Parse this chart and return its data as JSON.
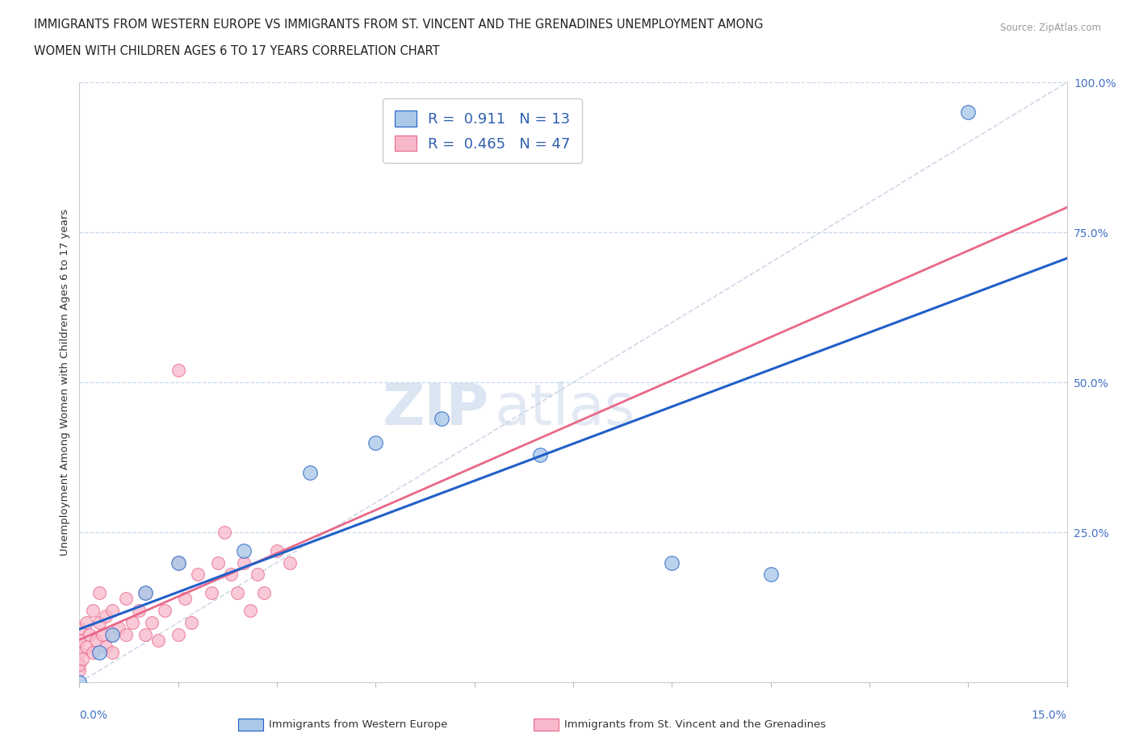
{
  "title_line1": "IMMIGRANTS FROM WESTERN EUROPE VS IMMIGRANTS FROM ST. VINCENT AND THE GRENADINES UNEMPLOYMENT AMONG",
  "title_line2": "WOMEN WITH CHILDREN AGES 6 TO 17 YEARS CORRELATION CHART",
  "source": "Source: ZipAtlas.com",
  "ylabel_label": "Unemployment Among Women with Children Ages 6 to 17 years",
  "legend1_label": "Immigrants from Western Europe",
  "legend2_label": "Immigrants from St. Vincent and the Grenadines",
  "R_blue": 0.911,
  "N_blue": 13,
  "R_pink": 0.465,
  "N_pink": 47,
  "blue_color": "#aac8e8",
  "blue_line_color": "#2060c8",
  "pink_color": "#f8b8cc",
  "pink_line_color": "#e86888",
  "diagonal_color": "#d0d8e8",
  "watermark_zip": "ZIP",
  "watermark_atlas": "atlas",
  "blue_scatter_x": [
    0.0,
    0.3,
    0.5,
    1.0,
    1.5,
    2.5,
    3.5,
    4.5,
    5.5,
    7.0,
    9.0,
    10.5,
    13.5
  ],
  "blue_scatter_y": [
    0.0,
    5.0,
    8.0,
    15.0,
    20.0,
    22.0,
    35.0,
    40.0,
    44.0,
    38.0,
    20.0,
    18.0,
    95.0
  ],
  "pink_scatter_x": [
    0.0,
    0.0,
    0.0,
    0.0,
    0.0,
    0.05,
    0.1,
    0.1,
    0.15,
    0.2,
    0.2,
    0.25,
    0.3,
    0.3,
    0.35,
    0.4,
    0.4,
    0.5,
    0.5,
    0.5,
    0.6,
    0.7,
    0.7,
    0.8,
    0.9,
    1.0,
    1.0,
    1.1,
    1.2,
    1.3,
    1.5,
    1.5,
    1.6,
    1.7,
    1.8,
    2.0,
    2.1,
    2.2,
    2.3,
    2.4,
    2.5,
    2.6,
    2.7,
    2.8,
    3.0,
    3.2,
    1.5
  ],
  "pink_scatter_y": [
    2.0,
    3.0,
    5.0,
    7.0,
    9.0,
    4.0,
    6.0,
    10.0,
    8.0,
    5.0,
    12.0,
    7.0,
    10.0,
    15.0,
    8.0,
    11.0,
    6.0,
    8.0,
    12.0,
    5.0,
    9.0,
    14.0,
    8.0,
    10.0,
    12.0,
    8.0,
    15.0,
    10.0,
    7.0,
    12.0,
    20.0,
    8.0,
    14.0,
    10.0,
    18.0,
    15.0,
    20.0,
    25.0,
    18.0,
    15.0,
    20.0,
    12.0,
    18.0,
    15.0,
    22.0,
    20.0,
    52.0
  ],
  "xmax": 15.0,
  "ymax": 100.0,
  "yticks": [
    0,
    25,
    50,
    75,
    100
  ],
  "ytick_labels": [
    "",
    "25.0%",
    "50.0%",
    "75.0%",
    "100.0%"
  ]
}
